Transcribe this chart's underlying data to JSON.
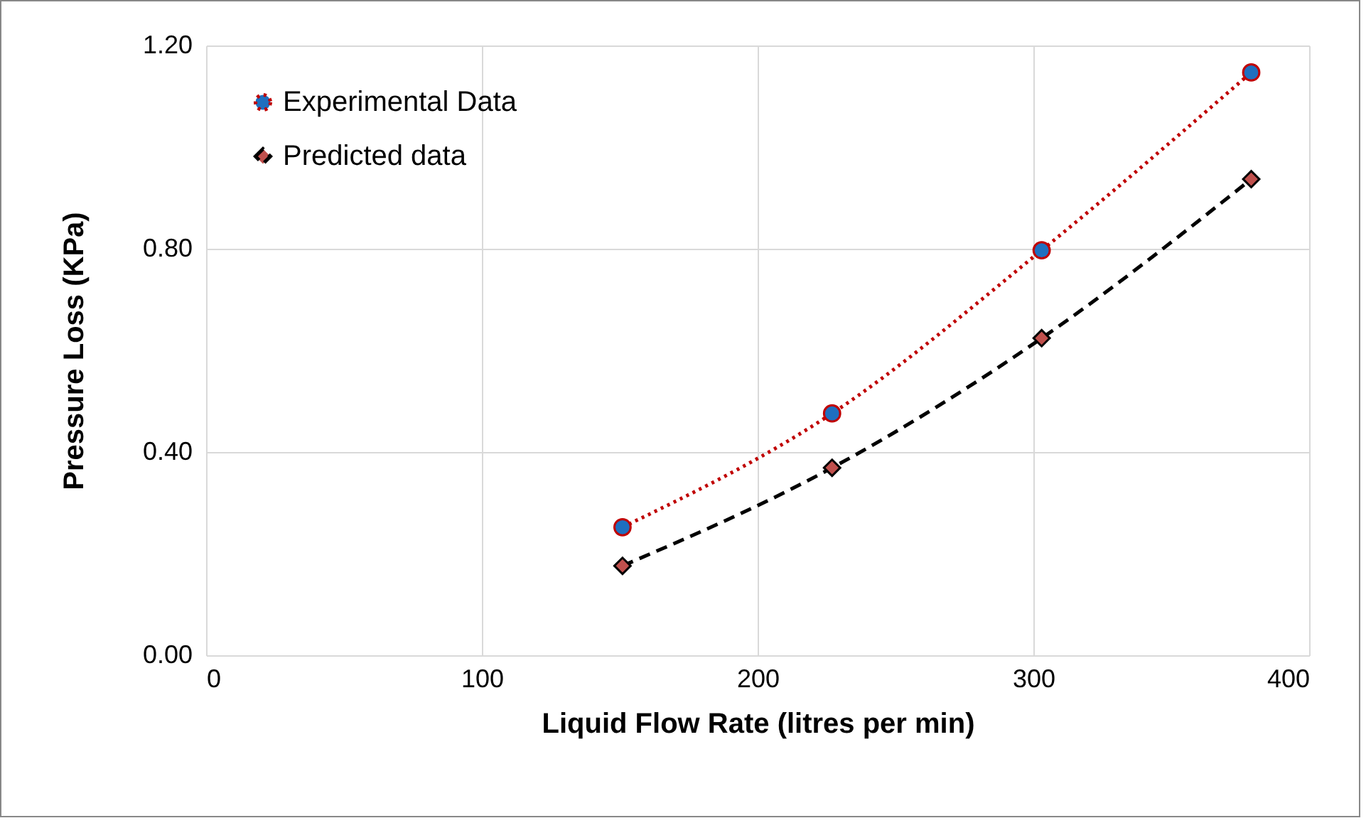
{
  "chart_data": {
    "type": "line",
    "xlabel": "Liquid Flow Rate (litres per min)",
    "ylabel": "Pressure Loss (KPa)",
    "xlim": [
      0,
      400
    ],
    "xticks": [
      0,
      100,
      200,
      300,
      400
    ],
    "ylim": [
      0,
      1.2
    ],
    "yticks": [
      {
        "value": 0,
        "label": "0.00"
      },
      {
        "value": 0.4,
        "label": "0.40"
      },
      {
        "value": 0.8,
        "label": "0.80"
      },
      {
        "value": 1.2,
        "label": "1.20"
      }
    ],
    "grid": true,
    "legend": "top left",
    "series": [
      {
        "name": "Experimental Data",
        "color": "#c00000",
        "colors": [
          "#1f6fbf",
          "#1f6fbf",
          "#1f6fbf",
          "#1f6fbf"
        ],
        "marker": "circle",
        "line_style": "dotted",
        "x": [
          151,
          227,
          303,
          379
        ],
        "values": [
          0.252,
          0.476,
          0.797,
          1.147
        ]
      },
      {
        "name": "Predicted data",
        "color": "#000000",
        "colors": [
          "#c0504d",
          "#c0504d",
          "#c0504d",
          "#c0504d"
        ],
        "marker": "diamond",
        "line_style": "dashed",
        "x": [
          151,
          227,
          303,
          379
        ],
        "values": [
          0.176,
          0.369,
          0.624,
          0.937
        ]
      }
    ]
  }
}
